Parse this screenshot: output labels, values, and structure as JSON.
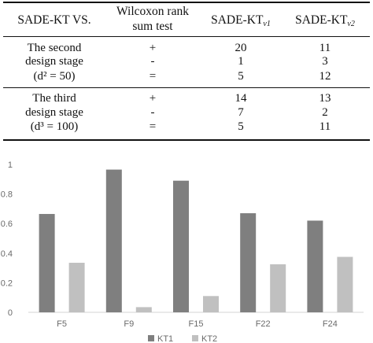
{
  "table": {
    "headers": {
      "col1": "SADE-KT VS.",
      "col2_line1": "Wilcoxon rank",
      "col2_line2": "sum test",
      "col3_main": "SADE-KT",
      "col3_sub": "v1",
      "col4_main": "SADE-KT",
      "col4_sub": "v2"
    },
    "groups": [
      {
        "label_line1": "The second",
        "label_line2": "design stage",
        "label_line3": "(d² = 50)",
        "rows": [
          {
            "sign": "+",
            "v1": "20",
            "v2": "11"
          },
          {
            "sign": "-",
            "v1": "1",
            "v2": "3"
          },
          {
            "sign": "=",
            "v1": "5",
            "v2": "12"
          }
        ]
      },
      {
        "label_line1": "The third",
        "label_line2": "design stage",
        "label_line3": "(d³ = 100)",
        "rows": [
          {
            "sign": "+",
            "v1": "14",
            "v2": "13"
          },
          {
            "sign": "-",
            "v1": "7",
            "v2": "2"
          },
          {
            "sign": "=",
            "v1": "5",
            "v2": "11"
          }
        ]
      }
    ]
  },
  "chart_data": {
    "type": "bar",
    "categories": [
      "F5",
      "F9",
      "F15",
      "F22",
      "F24"
    ],
    "series": [
      {
        "name": "KT1",
        "values": [
          0.665,
          0.965,
          0.89,
          0.67,
          0.62
        ],
        "color": "#7f7f7f"
      },
      {
        "name": "KT2",
        "values": [
          0.335,
          0.035,
          0.11,
          0.325,
          0.375
        ],
        "color": "#c0c0c0"
      }
    ],
    "ylim": [
      0,
      1
    ],
    "yticks": [
      "0",
      "0.2",
      "0.4",
      "0.6",
      "0.8",
      "1"
    ],
    "grid": false,
    "legend_position": "bottom"
  }
}
